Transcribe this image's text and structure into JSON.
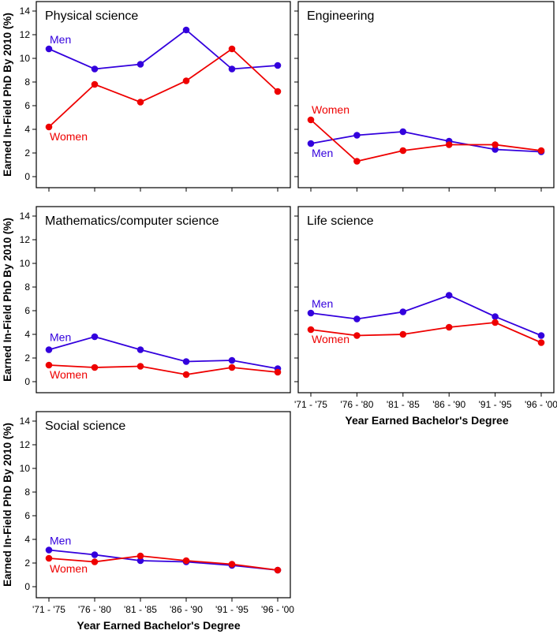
{
  "chart_data": [
    {
      "type": "line",
      "title": "Physical science",
      "categories": [
        "'71 - '75",
        "'76 - '80",
        "'81 - '85",
        "'86 - '90",
        "'91 - '95",
        "'96 - '00"
      ],
      "ylabel": "Earned In-Field PhD By 2010 (%)",
      "xlabel": "",
      "ylim": [
        0,
        14
      ],
      "yticks": [
        0,
        2,
        4,
        6,
        8,
        10,
        12,
        14
      ],
      "series": [
        {
          "name": "Men",
          "color": "#3300dd",
          "values": [
            10.8,
            9.1,
            9.5,
            12.4,
            9.1,
            9.4
          ]
        },
        {
          "name": "Women",
          "color": "#ee0000",
          "values": [
            4.2,
            7.8,
            6.3,
            8.1,
            10.8,
            7.2
          ]
        }
      ]
    },
    {
      "type": "line",
      "title": "Engineering",
      "categories": [
        "'71 - '75",
        "'76 - '80",
        "'81 - '85",
        "'86 - '90",
        "'91 - '95",
        "'96 - '00"
      ],
      "ylabel": "",
      "xlabel": "",
      "ylim": [
        0,
        14
      ],
      "series": [
        {
          "name": "Men",
          "color": "#3300dd",
          "values": [
            2.8,
            3.5,
            3.8,
            3.0,
            2.3,
            2.1
          ]
        },
        {
          "name": "Women",
          "color": "#ee0000",
          "values": [
            4.8,
            1.3,
            2.2,
            2.7,
            2.7,
            2.2
          ]
        }
      ]
    },
    {
      "type": "line",
      "title": "Mathematics/computer science",
      "categories": [
        "'71 - '75",
        "'76 - '80",
        "'81 - '85",
        "'86 - '90",
        "'91 - '95",
        "'96 - '00"
      ],
      "ylabel": "Earned In-Field PhD By 2010 (%)",
      "xlabel": "",
      "ylim": [
        0,
        14
      ],
      "yticks": [
        0,
        2,
        4,
        6,
        8,
        10,
        12,
        14
      ],
      "series": [
        {
          "name": "Men",
          "color": "#3300dd",
          "values": [
            2.7,
            3.8,
            2.7,
            1.7,
            1.8,
            1.1
          ]
        },
        {
          "name": "Women",
          "color": "#ee0000",
          "values": [
            1.4,
            1.2,
            1.3,
            0.6,
            1.2,
            0.8
          ]
        }
      ]
    },
    {
      "type": "line",
      "title": "Life science",
      "categories": [
        "'71 - '75",
        "'76 - '80",
        "'81 - '85",
        "'86 - '90",
        "'91 - '95",
        "'96 - '00"
      ],
      "ylabel": "",
      "xlabel": "Year Earned Bachelor's Degree",
      "ylim": [
        0,
        14
      ],
      "series": [
        {
          "name": "Men",
          "color": "#3300dd",
          "values": [
            5.8,
            5.3,
            5.9,
            7.3,
            5.5,
            3.9
          ]
        },
        {
          "name": "Women",
          "color": "#ee0000",
          "values": [
            4.4,
            3.9,
            4.0,
            4.6,
            5.0,
            3.3
          ]
        }
      ]
    },
    {
      "type": "line",
      "title": "Social science",
      "categories": [
        "'71 - '75",
        "'76 - '80",
        "'81 - '85",
        "'86 - '90",
        "'91 - '95",
        "'96 - '00"
      ],
      "ylabel": "Earned In-Field PhD By 2010 (%)",
      "xlabel": "Year Earned Bachelor's Degree",
      "ylim": [
        0,
        14
      ],
      "yticks": [
        0,
        2,
        4,
        6,
        8,
        10,
        12,
        14
      ],
      "series": [
        {
          "name": "Men",
          "color": "#3300dd",
          "values": [
            3.1,
            2.7,
            2.2,
            2.1,
            1.8,
            1.4
          ]
        },
        {
          "name": "Women",
          "color": "#ee0000",
          "values": [
            2.4,
            2.1,
            2.6,
            2.2,
            1.9,
            1.4
          ]
        }
      ]
    }
  ]
}
